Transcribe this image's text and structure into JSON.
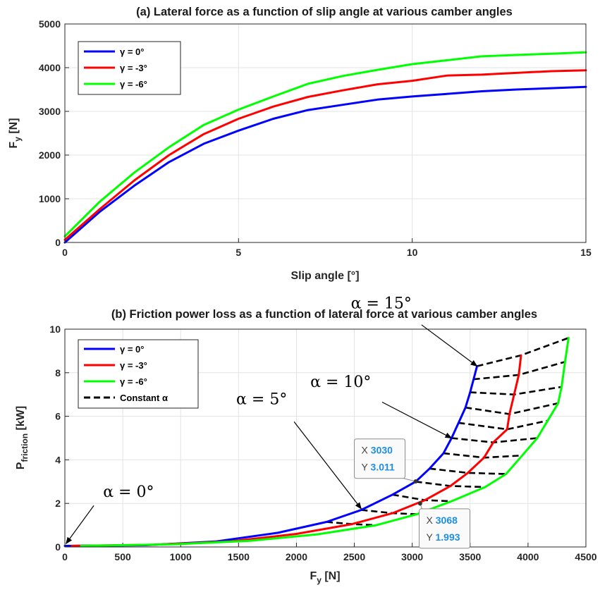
{
  "colors": {
    "gamma0": "#0000ff",
    "gamma3": "#ff0000",
    "gamma6": "#00ff00",
    "constant": "#000000",
    "grid": "#e3e3e3",
    "datatip_value": "#1e8fe0"
  },
  "chart_data": [
    {
      "type": "line",
      "title": "(a) Lateral force as a function of slip angle at various camber angles",
      "xlabel": "Slip angle [°]",
      "ylabel_main": "F",
      "ylabel_sub": "y",
      "ylabel_unit": " [N]",
      "xlim": [
        0,
        15
      ],
      "ylim": [
        0,
        5000
      ],
      "xticks": [
        "0",
        "5",
        "10",
        "15"
      ],
      "yticks": [
        "0",
        "1000",
        "2000",
        "3000",
        "4000",
        "5000"
      ],
      "grid": true,
      "legend_position": "top-left",
      "series": [
        {
          "name": "γ = 0°",
          "color": "#0000ff",
          "x": [
            0,
            1,
            2,
            3,
            4,
            5,
            6,
            7,
            8,
            9,
            10,
            11,
            12,
            13,
            14,
            15
          ],
          "y": [
            0,
            700,
            1300,
            1840,
            2260,
            2560,
            2830,
            3030,
            3150,
            3270,
            3340,
            3400,
            3460,
            3500,
            3530,
            3560
          ]
        },
        {
          "name": "γ = -3°",
          "color": "#ff0000",
          "x": [
            0,
            1,
            2,
            3,
            4,
            5,
            6,
            7,
            8,
            9,
            10,
            11,
            12,
            13,
            14,
            15
          ],
          "y": [
            60,
            760,
            1420,
            2000,
            2480,
            2830,
            3110,
            3330,
            3480,
            3620,
            3700,
            3820,
            3840,
            3880,
            3920,
            3940
          ]
        },
        {
          "name": "γ = -6°",
          "color": "#00ff00",
          "x": [
            0,
            1,
            2,
            3,
            4,
            5,
            6,
            7,
            8,
            9,
            10,
            11,
            12,
            13,
            14,
            15
          ],
          "y": [
            140,
            930,
            1600,
            2180,
            2690,
            3040,
            3340,
            3630,
            3810,
            3950,
            4080,
            4170,
            4260,
            4290,
            4320,
            4350
          ]
        }
      ]
    },
    {
      "type": "line",
      "title": "(b) Friction power loss as a function of lateral force at various camber angles",
      "xlabel_main": "F",
      "xlabel_sub": "y",
      "xlabel_unit": " [N]",
      "ylabel_main": "P",
      "ylabel_sub": "friction",
      "ylabel_unit": " [kW]",
      "xlim": [
        0,
        4500
      ],
      "ylim": [
        0,
        10
      ],
      "xticks": [
        "0",
        "500",
        "1000",
        "1500",
        "2000",
        "2500",
        "3000",
        "3500",
        "4000",
        "4500"
      ],
      "yticks": [
        "0",
        "2",
        "4",
        "6",
        "8",
        "10"
      ],
      "grid": true,
      "legend_position": "top-left",
      "series": [
        {
          "name": "γ = 0°",
          "color": "#0000ff",
          "x": [
            0,
            700,
            1300,
            1840,
            2260,
            2560,
            2830,
            3030,
            3150,
            3270,
            3340,
            3400,
            3460,
            3500,
            3530,
            3560
          ],
          "y": [
            0.05,
            0.08,
            0.25,
            0.65,
            1.15,
            1.7,
            2.4,
            3.0,
            3.6,
            4.3,
            5.0,
            5.7,
            6.4,
            7.1,
            7.7,
            8.3
          ]
        },
        {
          "name": "γ = -3°",
          "color": "#ff0000",
          "x": [
            60,
            760,
            1420,
            2000,
            2480,
            2830,
            3110,
            3330,
            3480,
            3620,
            3700,
            3820,
            3840,
            3880,
            3920,
            3940
          ],
          "y": [
            0.05,
            0.1,
            0.25,
            0.6,
            1.05,
            1.55,
            2.15,
            2.8,
            3.4,
            4.1,
            4.8,
            5.4,
            6.1,
            7.0,
            7.9,
            8.8
          ]
        },
        {
          "name": "γ = -6°",
          "color": "#00ff00",
          "x": [
            140,
            930,
            1600,
            2180,
            2690,
            3040,
            3340,
            3630,
            3810,
            3950,
            4080,
            4170,
            4260,
            4290,
            4320,
            4350
          ],
          "y": [
            0.05,
            0.12,
            0.28,
            0.58,
            1.0,
            1.5,
            2.1,
            2.75,
            3.35,
            4.2,
            5.0,
            5.8,
            6.6,
            7.35,
            8.5,
            9.6
          ]
        }
      ],
      "constant_alpha": {
        "name": "Constant α",
        "lines": [
          {
            "x": [
              2260,
              2480,
              2690
            ],
            "y": [
              1.15,
              1.05,
              1.0
            ]
          },
          {
            "x": [
              2560,
              2830,
              3040
            ],
            "y": [
              1.7,
              1.55,
              1.5
            ]
          },
          {
            "x": [
              2830,
              3110,
              3340
            ],
            "y": [
              2.4,
              2.15,
              2.1
            ]
          },
          {
            "x": [
              3030,
              3330,
              3630
            ],
            "y": [
              3.0,
              2.8,
              2.75
            ]
          },
          {
            "x": [
              3150,
              3480,
              3810
            ],
            "y": [
              3.6,
              3.4,
              3.35
            ]
          },
          {
            "x": [
              3270,
              3620,
              3950
            ],
            "y": [
              4.3,
              4.1,
              4.2
            ]
          },
          {
            "x": [
              3340,
              3700,
              4080
            ],
            "y": [
              5.0,
              4.8,
              5.0
            ]
          },
          {
            "x": [
              3400,
              3820,
              4170
            ],
            "y": [
              5.7,
              5.4,
              5.8
            ]
          },
          {
            "x": [
              3460,
              3840,
              4260
            ],
            "y": [
              6.4,
              6.1,
              6.6
            ]
          },
          {
            "x": [
              3500,
              3880,
              4290
            ],
            "y": [
              7.1,
              7.0,
              7.35
            ]
          },
          {
            "x": [
              3530,
              3920,
              4320
            ],
            "y": [
              7.7,
              7.9,
              8.5
            ]
          },
          {
            "x": [
              3560,
              3940,
              4350
            ],
            "y": [
              8.3,
              8.8,
              9.6
            ]
          }
        ]
      },
      "annotations": [
        {
          "label": "α = 0°",
          "text_at": [
            330,
            2.3
          ],
          "arrow_from": [
            250,
            1.9
          ],
          "arrow_to": [
            10,
            0.15
          ]
        },
        {
          "label": "α = 5°",
          "text_at": [
            1480,
            6.55
          ],
          "arrow_from": [
            1980,
            5.75
          ],
          "arrow_to": [
            2560,
            1.75
          ]
        },
        {
          "label": "α = 10°",
          "text_at": [
            2120,
            7.35
          ],
          "arrow_from": [
            2740,
            6.65
          ],
          "arrow_to": [
            3340,
            5.0
          ]
        },
        {
          "label": "α = 15°",
          "text_at": [
            2470,
            10.95
          ],
          "arrow_from": [
            3080,
            10.2
          ],
          "arrow_to": [
            3560,
            8.3
          ]
        }
      ],
      "datatips": [
        {
          "x_label": "X",
          "x_value": "3030",
          "y_label": "Y",
          "y_value": "3.011",
          "point": [
            3030,
            3.011
          ],
          "box_at": [
            2500,
            4.96
          ],
          "placement": "above-left"
        },
        {
          "x_label": "X",
          "x_value": "3068",
          "y_label": "Y",
          "y_value": "1.993",
          "point": [
            3068,
            1.993
          ],
          "box_at": [
            3060,
            1.75
          ],
          "placement": "below-right"
        }
      ]
    }
  ]
}
